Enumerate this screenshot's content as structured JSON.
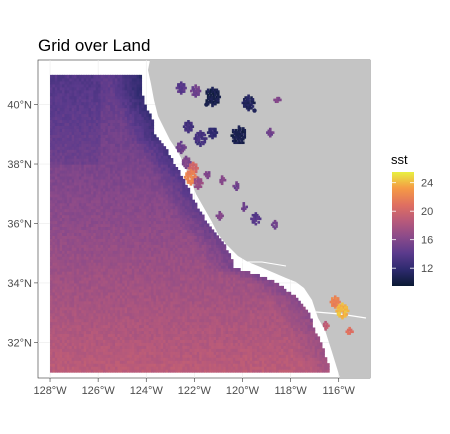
{
  "title": "Grid over Land",
  "chart_data": {
    "type": "heatmap",
    "title": "Grid over Land",
    "x_axis": {
      "range": [
        -128.5,
        -114.7
      ],
      "ticks": [
        {
          "value": -128,
          "label": "128°W"
        },
        {
          "value": -126,
          "label": "126°W"
        },
        {
          "value": -124,
          "label": "124°W"
        },
        {
          "value": -122,
          "label": "122°W"
        },
        {
          "value": -120,
          "label": "120°W"
        },
        {
          "value": -118,
          "label": "118°W"
        },
        {
          "value": -116,
          "label": "116°W"
        }
      ]
    },
    "y_axis": {
      "range": [
        30.8,
        41.5
      ],
      "ticks": [
        {
          "value": 32,
          "label": "32°N"
        },
        {
          "value": 34,
          "label": "34°N"
        },
        {
          "value": 36,
          "label": "36°N"
        },
        {
          "value": 38,
          "label": "38°N"
        },
        {
          "value": 40,
          "label": "40°N"
        }
      ]
    },
    "grid": true,
    "background_land_color": "#c4c4c4",
    "panel_background": "#ffffff",
    "grid_color": "#ebebeb",
    "legend": {
      "title": "sst",
      "position": "right",
      "range": [
        9.5,
        25.5
      ],
      "ticks": [
        {
          "value": 12,
          "label": "12"
        },
        {
          "value": 16,
          "label": "16"
        },
        {
          "value": 20,
          "label": "20"
        },
        {
          "value": 24,
          "label": "24"
        }
      ],
      "palette": [
        "#0a1a33",
        "#2d2a6e",
        "#5a3a8c",
        "#8a4a8a",
        "#b85a7a",
        "#e07060",
        "#f59a45",
        "#e8f040"
      ]
    },
    "field": {
      "grid_extent": {
        "lon": [
          -128,
          -116.5
        ],
        "lat": [
          31,
          41
        ]
      },
      "value_range": [
        12.5,
        19.5
      ],
      "trend": "cold near north coast, warm toward south"
    },
    "hotspots": [
      {
        "lon": -122.2,
        "lat": 37.7,
        "value": 21.5
      },
      {
        "lon": -115.9,
        "lat": 33.1,
        "value": 24
      },
      {
        "lon": -120.2,
        "lat": 39.0,
        "value": 10.5
      },
      {
        "lon": -121.5,
        "lat": 40.0,
        "value": 10.5
      },
      {
        "lon": -119.5,
        "lat": 39.8,
        "value": 11
      }
    ]
  }
}
